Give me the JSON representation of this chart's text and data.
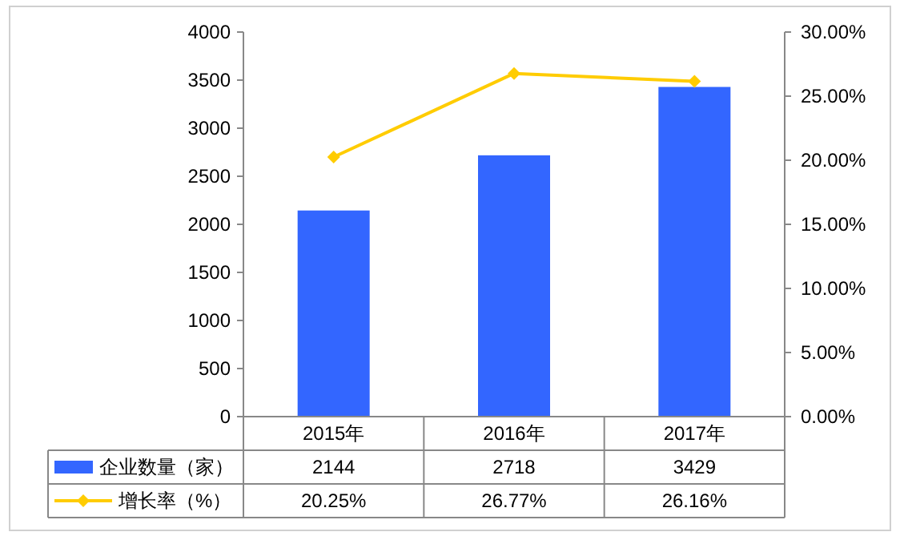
{
  "chart_data": {
    "type": "bar",
    "categories": [
      "2015年",
      "2016年",
      "2017年"
    ],
    "series": [
      {
        "name": "企业数量（家）",
        "color": "#3366ff",
        "values": [
          2144,
          2718,
          3429
        ],
        "value_labels": [
          "2144",
          "2718",
          "3429"
        ]
      },
      {
        "name": "增长率（%）",
        "type": "line",
        "axis": "y2",
        "color": "#ffcc00",
        "marker": "diamond",
        "values": [
          20.25,
          26.77,
          26.16
        ],
        "value_labels": [
          "20.25%",
          "26.77%",
          "26.16%"
        ]
      }
    ],
    "ylim": [
      0,
      4000
    ],
    "yticks": [
      0,
      500,
      1000,
      1500,
      2000,
      2500,
      3000,
      3500,
      4000
    ],
    "y2lim": [
      0,
      30
    ],
    "y2ticks": [
      {
        "value": 0,
        "label": "0.00%"
      },
      {
        "value": 5,
        "label": "5.00%"
      },
      {
        "value": 10,
        "label": "10.00%"
      },
      {
        "value": 15,
        "label": "15.00%"
      },
      {
        "value": 20,
        "label": "20.00%"
      },
      {
        "value": 25,
        "label": "25.00%"
      },
      {
        "value": 30,
        "label": "30.00%"
      }
    ],
    "legend": "bottom"
  }
}
